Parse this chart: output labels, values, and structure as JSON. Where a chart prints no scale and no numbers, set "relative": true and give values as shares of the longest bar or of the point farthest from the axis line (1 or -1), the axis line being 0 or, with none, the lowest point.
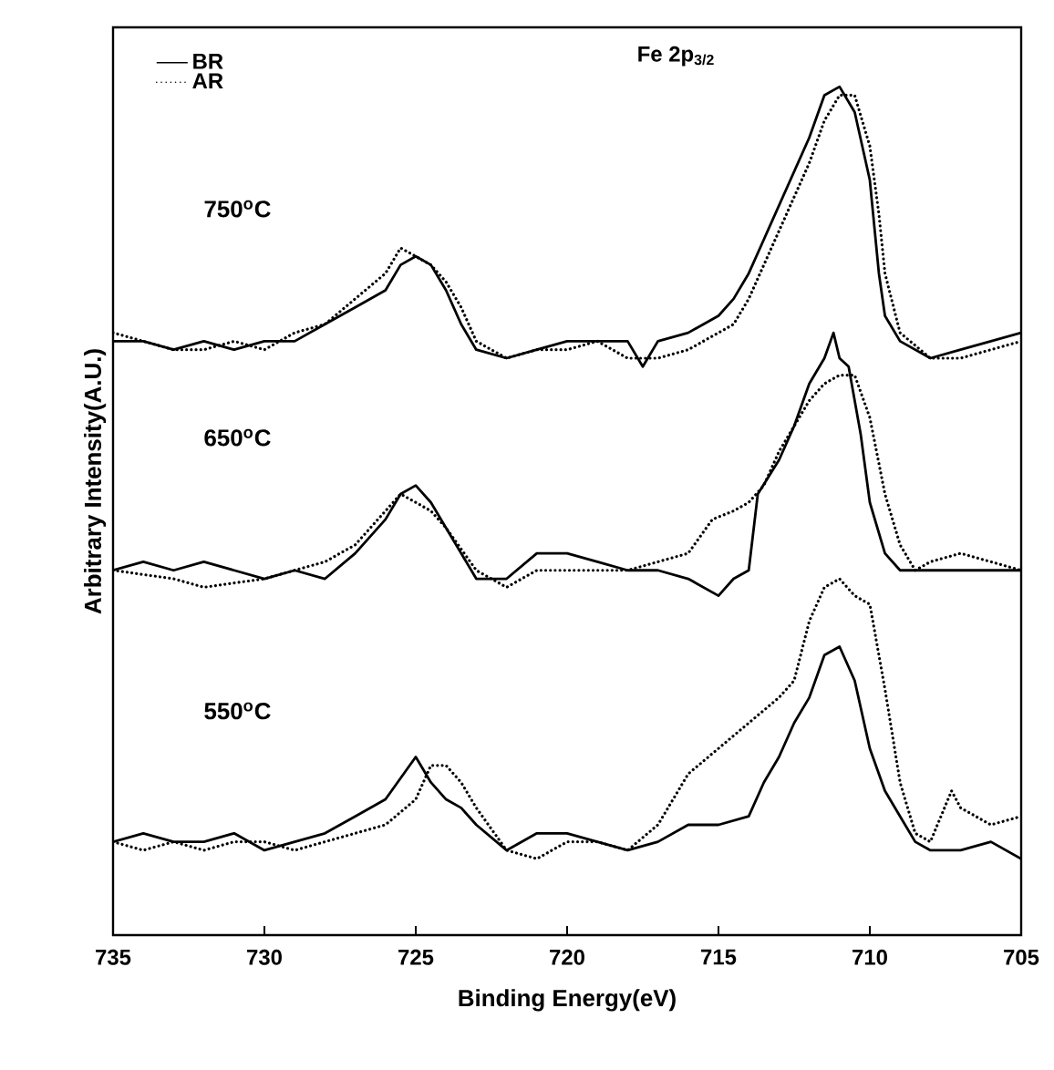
{
  "chart_data": {
    "type": "line",
    "title": "Fe 2p$_{3/2}$",
    "xlabel": "Binding Energy(eV)",
    "ylabel": "Arbitrary Intensity(A.U.)",
    "relative": true,
    "xlim": [
      735,
      705
    ],
    "xticks": [
      735,
      730,
      725,
      720,
      715,
      710,
      705
    ],
    "legend": "top left",
    "grid": false,
    "marker": "none",
    "series": [
      {
        "name": "BR",
        "color": "#000000",
        "line_style": "solid",
        "x": [
          735,
          734,
          733,
          732,
          731,
          730,
          729,
          728,
          727,
          726,
          725.5,
          725,
          724.5,
          724,
          723.5,
          723,
          722,
          721,
          720,
          719,
          718,
          717.5,
          717,
          716,
          715,
          714.5,
          714,
          713.5,
          713,
          712.5,
          712,
          711.5,
          711,
          710.5,
          710,
          709.7,
          709.5,
          709,
          708,
          707,
          706,
          705
        ],
        "values": [
          0.7,
          0.7,
          0.69,
          0.7,
          0.69,
          0.7,
          0.7,
          0.72,
          0.74,
          0.76,
          0.79,
          0.8,
          0.79,
          0.76,
          0.72,
          0.69,
          0.68,
          0.69,
          0.7,
          0.7,
          0.7,
          0.67,
          0.7,
          0.71,
          0.73,
          0.75,
          0.78,
          0.82,
          0.86,
          0.9,
          0.94,
          0.99,
          1.0,
          0.97,
          0.89,
          0.78,
          0.73,
          0.7,
          0.68,
          0.69,
          0.7,
          0.71
        ]
      },
      {
        "name": "AR",
        "color": "#000000",
        "line_style": "dotted",
        "x": [
          735,
          734,
          733,
          732,
          731,
          730,
          729,
          728,
          727,
          726,
          725.5,
          725,
          724.5,
          724,
          723.5,
          723,
          722,
          721,
          720,
          719,
          718,
          717,
          716,
          715,
          714.5,
          714,
          713.5,
          713,
          712.5,
          712,
          711.5,
          711,
          710.5,
          710,
          709.7,
          709.5,
          709,
          708,
          707,
          706,
          705
        ],
        "values": [
          0.71,
          0.7,
          0.69,
          0.69,
          0.7,
          0.69,
          0.71,
          0.72,
          0.75,
          0.78,
          0.81,
          0.8,
          0.79,
          0.77,
          0.74,
          0.7,
          0.68,
          0.69,
          0.69,
          0.7,
          0.68,
          0.68,
          0.69,
          0.71,
          0.72,
          0.75,
          0.79,
          0.83,
          0.87,
          0.91,
          0.96,
          0.99,
          0.99,
          0.93,
          0.85,
          0.78,
          0.71,
          0.68,
          0.68,
          0.69,
          0.7
        ]
      },
      {
        "color": "#000000",
        "line_style": "solid",
        "x": [
          735,
          734,
          733,
          732,
          731,
          730,
          729,
          728,
          727,
          726,
          725.5,
          725,
          724.5,
          724,
          723.5,
          723,
          722,
          721,
          720,
          719,
          718,
          717,
          716,
          715,
          714.5,
          714,
          713.7,
          713,
          712.5,
          712,
          711.5,
          711.2,
          711,
          710.7,
          710.3,
          710,
          709.5,
          709,
          708,
          707,
          706,
          705
        ],
        "values": [
          0.43,
          0.44,
          0.43,
          0.44,
          0.43,
          0.42,
          0.43,
          0.42,
          0.45,
          0.49,
          0.52,
          0.53,
          0.51,
          0.48,
          0.45,
          0.42,
          0.42,
          0.45,
          0.45,
          0.44,
          0.43,
          0.43,
          0.42,
          0.4,
          0.42,
          0.43,
          0.52,
          0.56,
          0.6,
          0.65,
          0.68,
          0.71,
          0.68,
          0.67,
          0.59,
          0.51,
          0.45,
          0.43,
          0.43,
          0.43,
          0.43,
          0.43
        ]
      },
      {
        "color": "#000000",
        "line_style": "dotted",
        "x": [
          735,
          733,
          732,
          730,
          728,
          727,
          726,
          725.5,
          725,
          724.5,
          724,
          723,
          722,
          721,
          720,
          719,
          718,
          717,
          716,
          715.2,
          714.5,
          714,
          713.5,
          713,
          712.5,
          712,
          711.5,
          711,
          710.5,
          710,
          709.5,
          709,
          708.5,
          708,
          707,
          706,
          705
        ],
        "values": [
          0.43,
          0.42,
          0.41,
          0.42,
          0.44,
          0.46,
          0.5,
          0.52,
          0.51,
          0.5,
          0.48,
          0.43,
          0.41,
          0.43,
          0.43,
          0.43,
          0.43,
          0.44,
          0.45,
          0.49,
          0.5,
          0.51,
          0.53,
          0.57,
          0.6,
          0.63,
          0.65,
          0.66,
          0.66,
          0.61,
          0.52,
          0.46,
          0.43,
          0.44,
          0.45,
          0.44,
          0.43
        ]
      },
      {
        "color": "#000000",
        "line_style": "solid",
        "x": [
          735,
          734,
          733,
          732,
          731,
          730,
          729,
          728,
          727,
          726,
          725,
          724.5,
          724,
          723.5,
          723,
          722,
          721,
          720,
          719,
          718,
          717,
          716,
          715,
          714,
          713.5,
          713,
          712.5,
          712,
          711.5,
          711,
          710.5,
          710,
          709.5,
          709,
          708.5,
          708,
          707,
          706,
          705
        ],
        "values": [
          0.11,
          0.12,
          0.11,
          0.11,
          0.12,
          0.1,
          0.11,
          0.12,
          0.14,
          0.16,
          0.21,
          0.18,
          0.16,
          0.15,
          0.13,
          0.1,
          0.12,
          0.12,
          0.11,
          0.1,
          0.11,
          0.13,
          0.13,
          0.14,
          0.18,
          0.21,
          0.25,
          0.28,
          0.33,
          0.34,
          0.3,
          0.22,
          0.17,
          0.14,
          0.11,
          0.1,
          0.1,
          0.11,
          0.09
        ]
      },
      {
        "color": "#000000",
        "line_style": "dotted",
        "x": [
          735,
          734,
          733,
          732,
          731,
          730,
          729,
          728,
          727,
          726,
          725,
          724.5,
          724,
          723.5,
          723,
          722,
          721,
          720,
          719,
          718,
          717,
          716,
          715,
          714,
          713,
          712.5,
          712,
          711.5,
          711,
          710.5,
          710,
          709.5,
          709,
          708.5,
          708,
          707.3,
          707,
          706,
          705
        ],
        "values": [
          0.11,
          0.1,
          0.11,
          0.1,
          0.11,
          0.11,
          0.1,
          0.11,
          0.12,
          0.13,
          0.16,
          0.2,
          0.2,
          0.18,
          0.15,
          0.1,
          0.09,
          0.11,
          0.11,
          0.1,
          0.13,
          0.19,
          0.22,
          0.25,
          0.28,
          0.3,
          0.37,
          0.41,
          0.42,
          0.4,
          0.39,
          0.29,
          0.18,
          0.12,
          0.11,
          0.17,
          0.15,
          0.13,
          0.14
        ]
      }
    ],
    "annotations": [
      "750$^{o}$C",
      "650$^{o}$C",
      "550$^{o}$C"
    ]
  }
}
